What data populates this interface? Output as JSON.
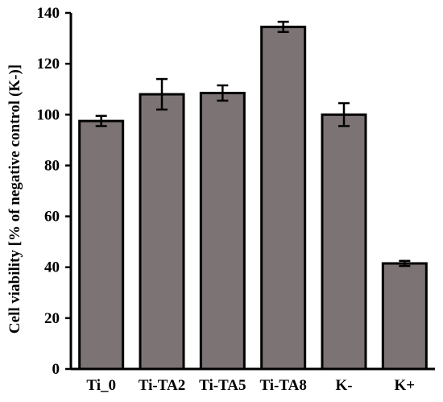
{
  "chart_data": {
    "type": "bar",
    "title": "",
    "xlabel": "",
    "ylabel": "Cell viability [% of negative control (K-)]",
    "categories": [
      "Ti_0",
      "Ti-TA2",
      "Ti-TA5",
      "Ti-TA8",
      "K-",
      "K+"
    ],
    "values": [
      97.5,
      108,
      108.5,
      134.5,
      100,
      41.5
    ],
    "errors": [
      2,
      6,
      3,
      2,
      4.5,
      1
    ],
    "ylim": [
      0,
      140
    ],
    "yticks": [
      "0",
      "20",
      "40",
      "60",
      "80",
      "100",
      "120",
      "140"
    ],
    "grid": false,
    "legend": "none",
    "colors": {
      "bar": "#7c7474",
      "bar_edge": "#000000",
      "error_bar": "#000000",
      "axis": "#000000"
    }
  }
}
